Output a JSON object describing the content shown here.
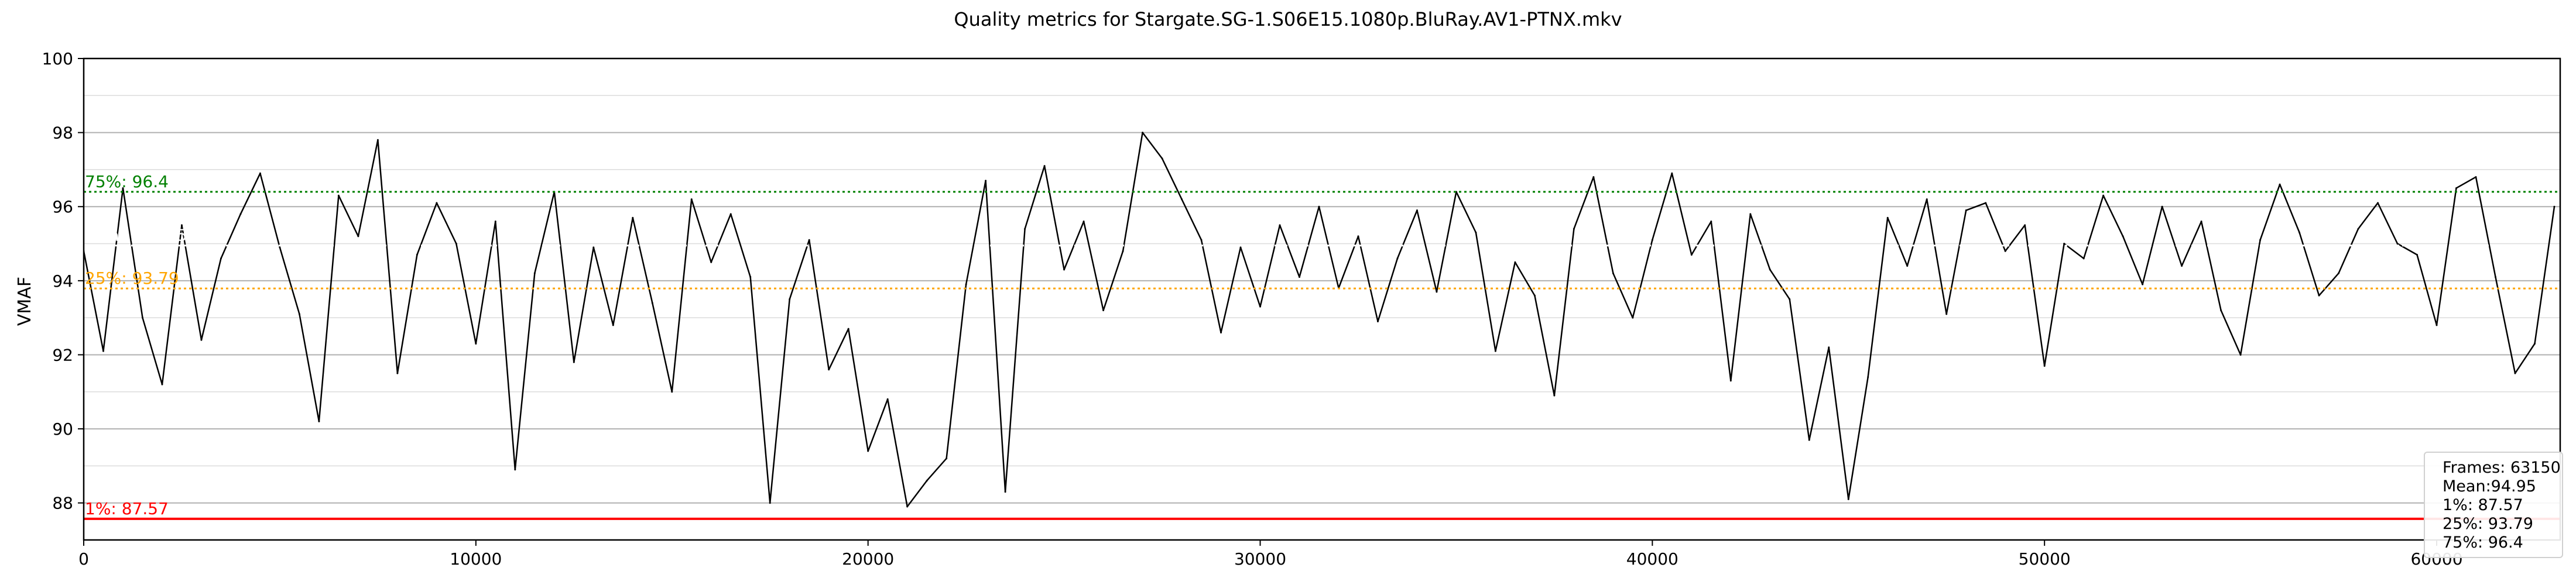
{
  "chart_data": {
    "type": "line",
    "title": "Quality metrics for Stargate.SG-1.S06E15.1080p.BluRay.AV1-PTNX.mkv",
    "xlabel": "",
    "ylabel": "VMAF",
    "xlim": [
      0,
      63150
    ],
    "ylim": [
      87,
      100
    ],
    "xticks": [
      0,
      10000,
      20000,
      30000,
      40000,
      50000,
      60000
    ],
    "yticks": [
      88,
      90,
      92,
      94,
      96,
      98,
      100
    ],
    "grid": true,
    "frames": 63150,
    "series": [
      {
        "name": "",
        "color": "#000000",
        "x": [
          0,
          500,
          1000,
          1500,
          2000,
          2500,
          3000,
          3500,
          4000,
          4500,
          5000,
          5500,
          6000,
          6500,
          7000,
          7500,
          8000,
          8500,
          9000,
          9500,
          10000,
          10500,
          11000,
          11500,
          12000,
          12500,
          13000,
          13500,
          14000,
          14500,
          15000,
          15500,
          16000,
          16500,
          17000,
          17500,
          18000,
          18500,
          19000,
          19500,
          20000,
          20500,
          21000,
          21500,
          22000,
          22500,
          23000,
          23500,
          24000,
          24500,
          25000,
          25500,
          26000,
          26500,
          27000,
          27500,
          28000,
          28500,
          29000,
          29500,
          30000,
          30500,
          31000,
          31500,
          32000,
          32500,
          33000,
          33500,
          34000,
          34500,
          35000,
          35500,
          36000,
          36500,
          37000,
          37500,
          38000,
          38500,
          39000,
          39500,
          40000,
          40500,
          41000,
          41500,
          42000,
          42500,
          43000,
          43500,
          44000,
          44500,
          45000,
          45500,
          46000,
          46500,
          47000,
          47500,
          48000,
          48500,
          49000,
          49500,
          50000,
          50500,
          51000,
          51500,
          52000,
          52500,
          53000,
          53500,
          54000,
          54500,
          55000,
          55500,
          56000,
          56500,
          57000,
          57500,
          58000,
          58500,
          59000,
          59500,
          60000,
          60500,
          61000,
          61500,
          62000,
          62500,
          63000
        ],
        "values": [
          94.8,
          92.1,
          96.5,
          93.0,
          91.2,
          95.5,
          92.4,
          94.6,
          95.8,
          96.9,
          94.9,
          93.1,
          90.2,
          96.3,
          95.2,
          97.8,
          91.5,
          94.7,
          96.1,
          95.0,
          92.3,
          95.6,
          88.9,
          94.2,
          96.4,
          91.8,
          94.9,
          92.8,
          95.7,
          93.4,
          91.0,
          96.2,
          94.5,
          95.8,
          94.1,
          88.0,
          93.5,
          95.1,
          91.6,
          92.7,
          89.4,
          90.8,
          87.9,
          88.6,
          89.2,
          93.9,
          96.7,
          88.3,
          95.4,
          97.1,
          94.3,
          95.6,
          93.2,
          94.8,
          98.0,
          97.3,
          96.2,
          95.1,
          92.6,
          94.9,
          93.3,
          95.5,
          94.1,
          96.0,
          93.8,
          95.2,
          92.9,
          94.6,
          95.9,
          93.7,
          96.4,
          95.3,
          92.1,
          94.5,
          93.6,
          90.9,
          95.4,
          96.8,
          94.2,
          93.0,
          95.1,
          96.9,
          94.7,
          95.6,
          91.3,
          95.8,
          94.3,
          93.5,
          89.7,
          92.2,
          88.1,
          91.4,
          95.7,
          94.4,
          96.2,
          93.1,
          95.9,
          96.1,
          94.8,
          95.5,
          91.7,
          95.0,
          94.6,
          96.3,
          95.2,
          93.9,
          96.0,
          94.4,
          95.6,
          93.2,
          92.0,
          95.1,
          96.6,
          95.3,
          93.6,
          94.2,
          95.4,
          96.1,
          95.0,
          94.7,
          92.8,
          96.5,
          96.8,
          94.1,
          91.5,
          92.3,
          96.0
        ]
      }
    ],
    "reference_lines": [
      {
        "name": "75%",
        "value": 96.4,
        "label": "75%: 96.4",
        "color": "#008000",
        "style": "dotted"
      },
      {
        "name": "Mean",
        "value": 94.95,
        "label": "Mean: 94.95",
        "color": "#ffffff",
        "style": "dotted"
      },
      {
        "name": "25%",
        "value": 93.79,
        "label": "25%: 93.79",
        "color": "#ffa500",
        "style": "dotted"
      },
      {
        "name": "1%",
        "value": 87.57,
        "label": "1%: 87.57",
        "color": "#ff0000",
        "style": "solid"
      }
    ],
    "summary": {
      "frames_label": "Frames: 63150",
      "mean_label": "Mean:94.95",
      "p1_label": "1%: 87.57",
      "p25_label": "25%: 93.79",
      "p75_label": "75%: 96.4"
    }
  }
}
